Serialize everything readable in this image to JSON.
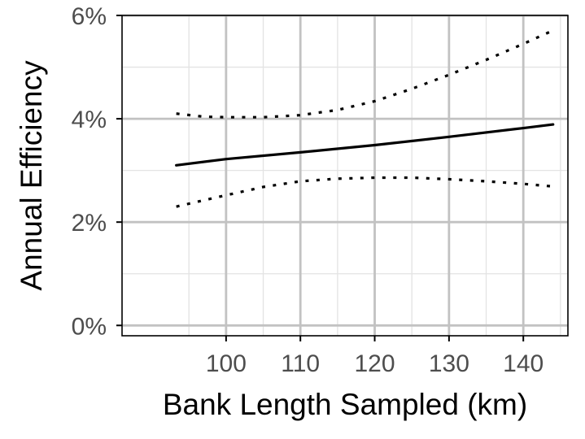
{
  "chart_data": {
    "type": "line",
    "title": "",
    "xlabel": "Bank Length Sampled (km)",
    "ylabel": "Annual Efficiency",
    "xlim": [
      86,
      146
    ],
    "ylim": [
      -0.002,
      0.06
    ],
    "x_ticks": [
      100,
      110,
      120,
      130,
      140
    ],
    "x_tick_labels": [
      "100",
      "110",
      "120",
      "130",
      "140"
    ],
    "y_ticks": [
      0,
      0.02,
      0.04,
      0.06
    ],
    "y_tick_labels": [
      "0%",
      "2%",
      "4%",
      "6%"
    ],
    "grid": true,
    "legend": "none",
    "series": [
      {
        "role": "estimate",
        "style": "solid",
        "color": "#000000",
        "x": [
          93.3,
          100,
          110,
          120,
          130,
          140,
          144
        ],
        "y": [
          0.031,
          0.0322,
          0.0335,
          0.0349,
          0.0365,
          0.0382,
          0.0389
        ]
      },
      {
        "role": "upper bound",
        "style": "dotted",
        "color": "#000000",
        "x": [
          93.3,
          97,
          100,
          105,
          110,
          115,
          120,
          125,
          130,
          135,
          140,
          144
        ],
        "y": [
          0.041,
          0.0404,
          0.0403,
          0.0403,
          0.0407,
          0.0417,
          0.0434,
          0.0458,
          0.0485,
          0.0514,
          0.0545,
          0.0571
        ]
      },
      {
        "role": "lower bound",
        "style": "dotted",
        "color": "#000000",
        "x": [
          93.3,
          100,
          105,
          110,
          115,
          120,
          125,
          130,
          135,
          140,
          144
        ],
        "y": [
          0.023,
          0.0252,
          0.0268,
          0.0279,
          0.0284,
          0.0286,
          0.0286,
          0.0283,
          0.0279,
          0.0274,
          0.0269
        ]
      }
    ]
  }
}
